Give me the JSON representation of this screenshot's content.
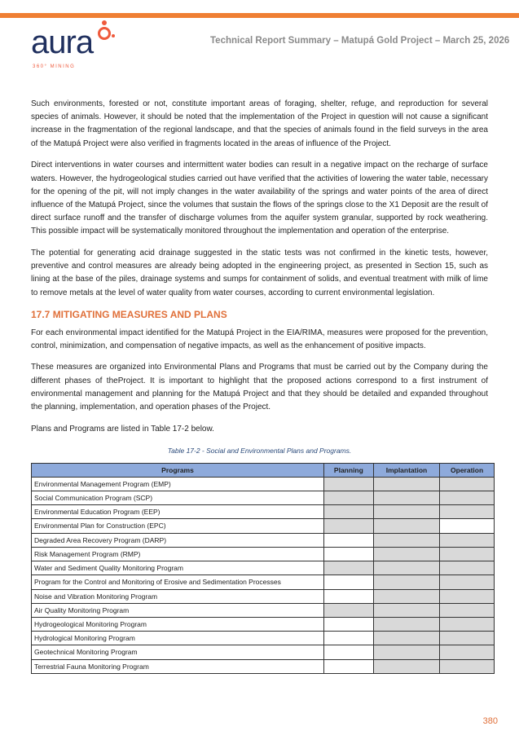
{
  "header": {
    "logo_text": "aura",
    "logo_tagline": "360° MINING",
    "title": "Technical Report Summary – Matupá Gold Project – March 25, 2026",
    "accent": "#ef7f33"
  },
  "paragraphs": [
    "Such environments, forested or not, constitute important areas of foraging, shelter, refuge, and reproduction for several species of animals. However, it should be noted that the implementation of the Project in question will not cause a significant increase in the fragmentation of the regional landscape, and that the species of animals found in the field surveys in the area of the Matupá Project were also verified in fragments located in the areas of influence of the Project.",
    "Direct interventions in water courses and intermittent water bodies can result in a negative impact on the recharge of surface waters. However, the hydrogeological studies carried out have verified that the activities of lowering the water table, necessary for the opening of the pit, will not imply changes in the water availability of the springs and water points of the area of direct influence of the Matupá Project, since the volumes that sustain the flows of the springs close to the X1 Deposit are the result of direct surface runoff and the transfer of discharge volumes from the aquifer system granular, supported by rock weathering. This possible impact will be systematically monitored throughout the implementation and operation of the enterprise.",
    "The potential for generating acid drainage suggested in the static tests was not confirmed in the kinetic tests, however, preventive and control measures are already being adopted in the engineering project, as presented in Section 15, such as lining at the base of the piles, drainage systems and sumps for containment of solids, and eventual treatment with milk of lime to remove metals at the level of water quality from water courses, according to current environmental legislation."
  ],
  "section": {
    "title": "17.7   MITIGATING MEASURES AND PLANS",
    "paragraphs": [
      "For each environmental impact identified for the Matupá Project in the EIA/RIMA, measures were proposed for the prevention, control, minimization, and compensation of negative impacts, as well as the enhancement of positive impacts.",
      "These measures are organized into Environmental Plans and Programs that must be carried out by the Company during the different phases of theProject. It is important to highlight that the proposed actions correspond to a first instrument of environmental management and planning for the Matupá Project and that they should be detailed and expanded throughout the planning, implementation, and operation phases of the Project.",
      "Plans and Programs are listed in Table 17-2 below."
    ]
  },
  "table": {
    "caption": "Table 17-2 - Social and Environmental Plans and Programs.",
    "headers": [
      "Programs",
      "Planning",
      "Implantation",
      "Operation"
    ],
    "rows": [
      {
        "name": "Environmental Management Program (EMP)",
        "phases": [
          true,
          true,
          true
        ]
      },
      {
        "name": "Social Communication Program (SCP)",
        "phases": [
          true,
          true,
          true
        ]
      },
      {
        "name": "Environmental Education Program (EEP)",
        "phases": [
          true,
          true,
          true
        ]
      },
      {
        "name": "Environmental Plan for Construction (EPC)",
        "phases": [
          true,
          true,
          false
        ]
      },
      {
        "name": "Degraded Area Recovery Program (DARP)",
        "phases": [
          false,
          true,
          true
        ]
      },
      {
        "name": "Risk Management Program (RMP)",
        "phases": [
          false,
          true,
          true
        ]
      },
      {
        "name": "Water and Sediment Quality Monitoring Program",
        "phases": [
          true,
          true,
          true
        ]
      },
      {
        "name": "Program for the Control and Monitoring of Erosive and Sedimentation Processes",
        "phases": [
          false,
          true,
          true
        ]
      },
      {
        "name": "Noise and Vibration Monitoring Program",
        "phases": [
          false,
          true,
          true
        ]
      },
      {
        "name": "Air Quality Monitoring Program",
        "phases": [
          true,
          true,
          true
        ]
      },
      {
        "name": "Hydrogeological Monitoring Program",
        "phases": [
          false,
          true,
          true
        ]
      },
      {
        "name": "Hydrological Monitoring Program",
        "phases": [
          false,
          true,
          true
        ]
      },
      {
        "name": "Geotechnical Monitoring Program",
        "phases": [
          false,
          true,
          true
        ]
      },
      {
        "name": "Terrestrial Fauna Monitoring Program",
        "phases": [
          false,
          true,
          true
        ]
      }
    ]
  },
  "page_number": "380"
}
